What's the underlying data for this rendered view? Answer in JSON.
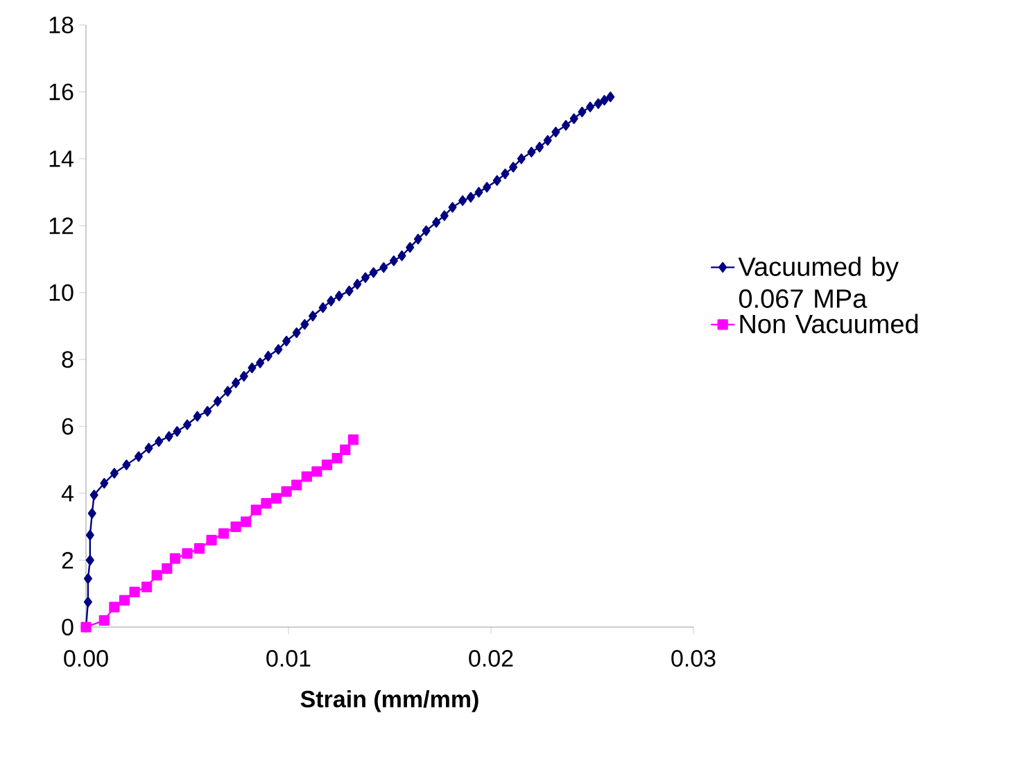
{
  "chart_data": {
    "type": "line",
    "xlabel": "Strain (mm/mm)",
    "xlim": [
      0,
      0.03
    ],
    "ylim": [
      0,
      18
    ],
    "xticks": [
      {
        "value": 0,
        "label": "0.00"
      },
      {
        "value": 0.01,
        "label": "0.01"
      },
      {
        "value": 0.02,
        "label": "0.02"
      },
      {
        "value": 0.03,
        "label": "0.03"
      }
    ],
    "yticks": [
      0,
      2,
      4,
      6,
      8,
      10,
      12,
      14,
      16,
      18
    ],
    "legend": "right",
    "grid": false,
    "series": [
      {
        "name": "Vacuumed by 0.067 MPa",
        "color": "#000080",
        "marker": "diamond",
        "x": [
          0,
          0.0001,
          0.0001,
          0.0002,
          0.0002,
          0.0003,
          0.0004,
          0.0009,
          0.0014,
          0.002,
          0.0026,
          0.0031,
          0.0036,
          0.0041,
          0.0045,
          0.005,
          0.0055,
          0.006,
          0.0065,
          0.007,
          0.0074,
          0.0078,
          0.0082,
          0.0086,
          0.009,
          0.0095,
          0.0099,
          0.0104,
          0.0108,
          0.0112,
          0.0117,
          0.0121,
          0.0125,
          0.013,
          0.0134,
          0.0138,
          0.0142,
          0.0147,
          0.0152,
          0.0156,
          0.016,
          0.0164,
          0.0168,
          0.0173,
          0.0177,
          0.0181,
          0.0186,
          0.019,
          0.0194,
          0.0198,
          0.0203,
          0.0207,
          0.0211,
          0.0215,
          0.022,
          0.0224,
          0.0228,
          0.0232,
          0.0237,
          0.0241,
          0.0245,
          0.0249,
          0.0253,
          0.0256,
          0.0259
        ],
        "values": [
          0,
          0.75,
          1.45,
          2.0,
          2.75,
          3.4,
          3.95,
          4.3,
          4.6,
          4.85,
          5.1,
          5.35,
          5.55,
          5.7,
          5.85,
          6.05,
          6.3,
          6.45,
          6.75,
          7.05,
          7.3,
          7.5,
          7.75,
          7.9,
          8.1,
          8.3,
          8.55,
          8.8,
          9.05,
          9.3,
          9.55,
          9.75,
          9.9,
          10.05,
          10.25,
          10.45,
          10.6,
          10.75,
          10.95,
          11.1,
          11.35,
          11.6,
          11.85,
          12.1,
          12.3,
          12.55,
          12.75,
          12.85,
          13.0,
          13.15,
          13.35,
          13.55,
          13.75,
          14.0,
          14.2,
          14.35,
          14.55,
          14.8,
          15.0,
          15.2,
          15.4,
          15.55,
          15.65,
          15.75,
          15.85
        ]
      },
      {
        "name": "Non Vacuumed",
        "color": "#ff00ff",
        "marker": "square",
        "x": [
          0,
          0.0009,
          0.0014,
          0.0019,
          0.0024,
          0.003,
          0.0035,
          0.004,
          0.0044,
          0.005,
          0.0056,
          0.0062,
          0.0068,
          0.0074,
          0.0079,
          0.0084,
          0.0089,
          0.0094,
          0.0099,
          0.0104,
          0.0109,
          0.0114,
          0.0119,
          0.0124,
          0.0128,
          0.0132
        ],
        "values": [
          0,
          0.2,
          0.6,
          0.8,
          1.05,
          1.2,
          1.55,
          1.75,
          2.05,
          2.2,
          2.35,
          2.6,
          2.8,
          3.0,
          3.15,
          3.5,
          3.7,
          3.85,
          4.05,
          4.25,
          4.5,
          4.65,
          4.85,
          5.05,
          5.3,
          5.6
        ]
      }
    ]
  }
}
